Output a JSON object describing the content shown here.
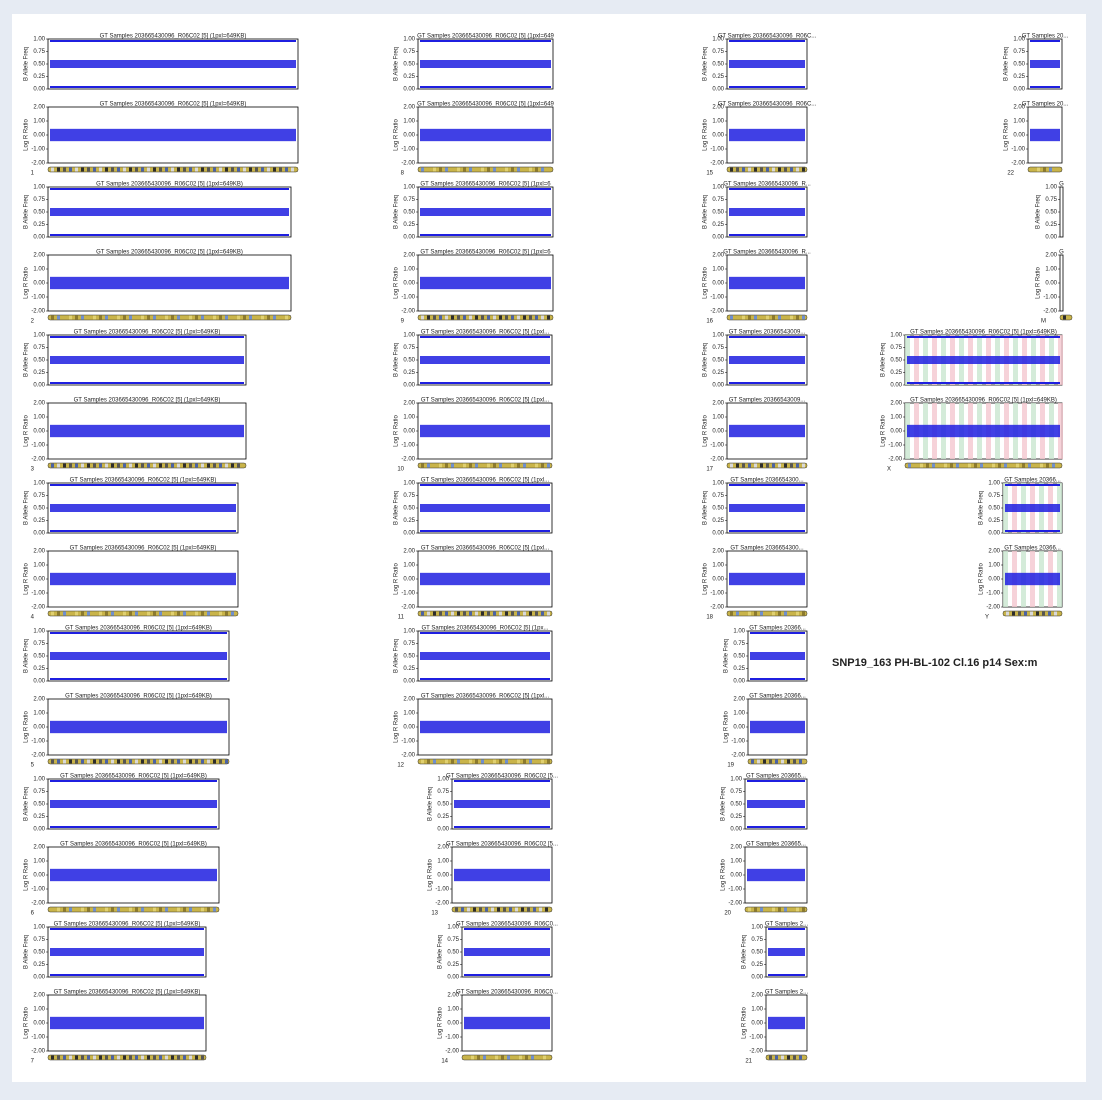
{
  "header": {
    "sample": "SNP19_163  PH-BL-102  Cl.16  p14   Sex:m"
  },
  "axes": {
    "baf_label": "B Allele Freq",
    "lrr_label": "Log R Ratio",
    "baf_ticks": [
      "1.00",
      "0.75",
      "0.50",
      "0.25",
      "0.00"
    ],
    "lrr_ticks": [
      "2.00",
      "1.00",
      "0.00",
      "-1.00",
      "-2.00"
    ]
  },
  "panels": [
    {
      "chromosome": "1",
      "baf_title": "GT Samples 203665430096_R06C02 [5]  (1pxl=649KB)",
      "lrr_title": "GT Samples 203665430096_R06C02 [5]  (1pxl=649KB)"
    },
    {
      "chromosome": "2",
      "baf_title": "GT Samples 203665430096_R06C02 [5]  (1pxl=649KB)",
      "lrr_title": "GT Samples 203665430096_R06C02 [5]  (1pxl=649KB)"
    },
    {
      "chromosome": "3",
      "baf_title": "GT Samples 203665430096_R06C02 [5]  (1pxl=649KB)",
      "lrr_title": "GT Samples 203665430096_R06C02 [5]  (1pxl=649KB)"
    },
    {
      "chromosome": "4",
      "baf_title": "GT Samples 203665430096_R06C02 [5]  (1pxl=649KB)",
      "lrr_title": "GT Samples 203665430096_R06C02 [5]  (1pxl=649KB)"
    },
    {
      "chromosome": "5",
      "baf_title": "GT Samples 203665430096_R06C02 [5]  (1pxl=649KB)",
      "lrr_title": "GT Samples 203665430096_R06C02 [5]  (1pxl=649KB)"
    },
    {
      "chromosome": "6",
      "baf_title": "GT Samples 203665430096_R06C02 [5]  (1pxl=649KB)",
      "lrr_title": "GT Samples 203665430096_R06C02 [5]  (1pxl=649KB)"
    },
    {
      "chromosome": "7",
      "baf_title": "GT Samples 203665430096_R06C02 [5]  (1pxl=649KB)",
      "lrr_title": "GT Samples 203665430096_R06C02 [5]  (1pxl=649KB)"
    },
    {
      "chromosome": "8",
      "baf_title": "GT Samples 203665430096_R06C02 [5]  (1pxl=649",
      "lrr_title": "GT Samples 203665430096_R06C02 [5]  (1pxl=649"
    },
    {
      "chromosome": "9",
      "baf_title": "GT Samples 203665430096_R06C02 [5]  (1pxl=6",
      "lrr_title": "GT Samples 203665430096_R06C02 [5]  (1pxl=6"
    },
    {
      "chromosome": "10",
      "baf_title": "GT Samples 203665430096_R06C02 [5]  (1pxl...",
      "lrr_title": "GT Samples 203665430096_R06C02 [5]  (1pxl..."
    },
    {
      "chromosome": "11",
      "baf_title": "GT Samples 203665430096_R06C02 [5]  (1pxl...",
      "lrr_title": "GT Samples 203665430096_R06C02 [5]  (1pxl..."
    },
    {
      "chromosome": "12",
      "baf_title": "GT Samples 203665430096_R06C02 [5]  (1px...",
      "lrr_title": "GT Samples 203665430096_R06C02 [5]  (1pxl..."
    },
    {
      "chromosome": "13",
      "baf_title": "GT Samples 203665430096_R06C02 [5...",
      "lrr_title": "GT Samples 203665430096_R06C02 [5..."
    },
    {
      "chromosome": "14",
      "baf_title": "GT Samples 203665430096_R06C0...",
      "lrr_title": "GT Samples 203665430096_R06C0..."
    },
    {
      "chromosome": "15",
      "baf_title": "GT Samples 203665430096_R06C...",
      "lrr_title": "GT Samples 203665430096_R06C..."
    },
    {
      "chromosome": "16",
      "baf_title": "GT Samples 203665430096_R...",
      "lrr_title": "GT Samples 203665430096_R..."
    },
    {
      "chromosome": "17",
      "baf_title": "GT Samples 20366543009...",
      "lrr_title": "GT Samples 20366543009..."
    },
    {
      "chromosome": "18",
      "baf_title": "GT Samples 2036654300...",
      "lrr_title": "GT Samples 2036654300..."
    },
    {
      "chromosome": "19",
      "baf_title": "GT Samples 20366...",
      "lrr_title": "GT Samples 20366..."
    },
    {
      "chromosome": "20",
      "baf_title": "GT Samples 203665...",
      "lrr_title": "GT Samples 203665..."
    },
    {
      "chromosome": "21",
      "baf_title": "GT Samples 2...",
      "lrr_title": "GT Samples 2..."
    },
    {
      "chromosome": "22",
      "baf_title": "GT Samples 20...",
      "lrr_title": "GT Samples 20..."
    },
    {
      "chromosome": "M",
      "baf_title": "G",
      "lrr_title": "G"
    },
    {
      "chromosome": "X",
      "baf_title": "GT Samples 203665430096_R06C02 [5]  (1pxl=649KB)",
      "lrr_title": "GT Samples 203665430096_R06C02 [5]  (1pxl=649KB)"
    },
    {
      "chromosome": "Y",
      "baf_title": "GT Samples 20366...",
      "lrr_title": "GT Samples 20366..."
    }
  ]
}
